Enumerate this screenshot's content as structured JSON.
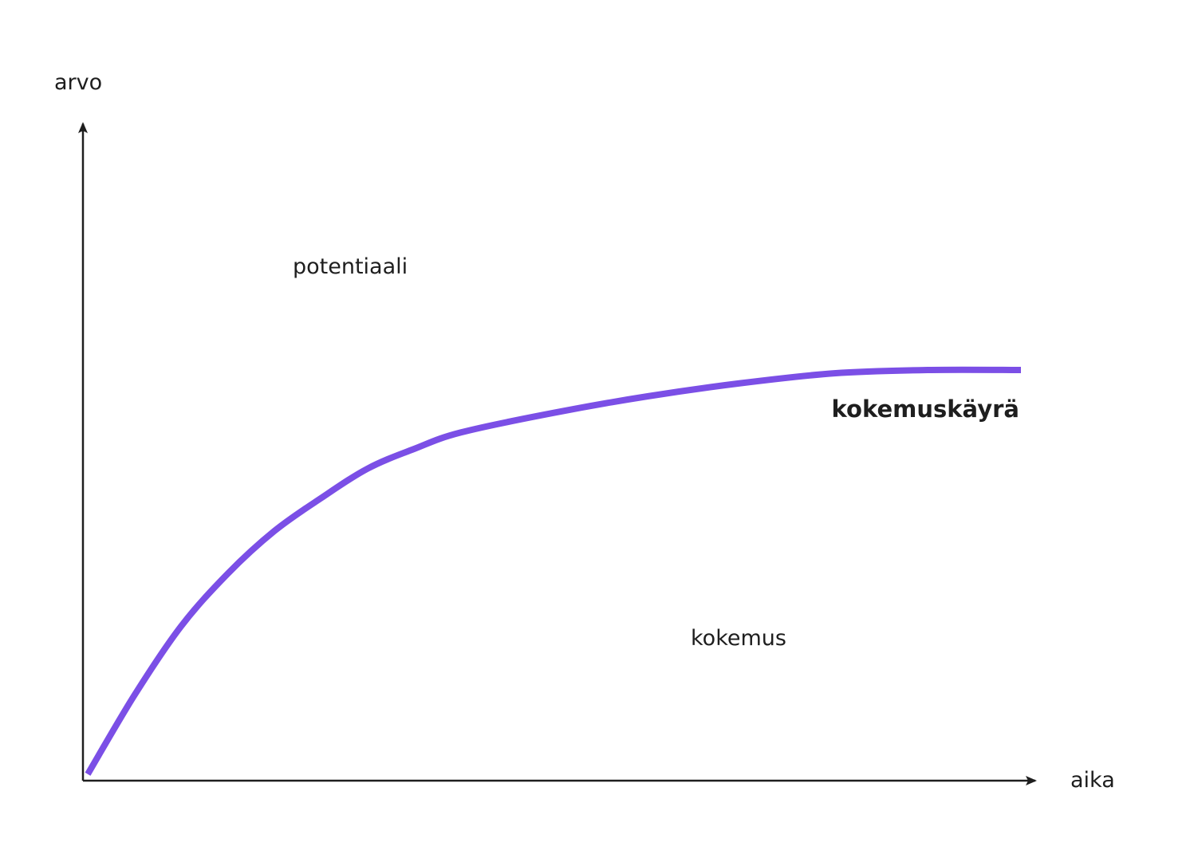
{
  "chart_data": {
    "type": "line",
    "title": "",
    "xlabel": "aika",
    "ylabel": "arvo",
    "xlim": [
      0,
      10
    ],
    "ylim": [
      0,
      10
    ],
    "grid": false,
    "curve_color": "#7b4fe6",
    "axis_color": "#1e1e1e",
    "series": [
      {
        "name": "kokemuskäyrä",
        "x": [
          0,
          0.5,
          1,
          1.5,
          2,
          2.5,
          3,
          3.5,
          4,
          5,
          6,
          7,
          8,
          9,
          10
        ],
        "y": [
          0.1,
          1.3,
          2.35,
          3.15,
          3.8,
          4.3,
          4.75,
          5.05,
          5.3,
          5.6,
          5.85,
          6.05,
          6.2,
          6.25,
          6.25
        ]
      }
    ],
    "annotations": {
      "above_region": "potentiaali",
      "below_region": "kokemus"
    }
  }
}
